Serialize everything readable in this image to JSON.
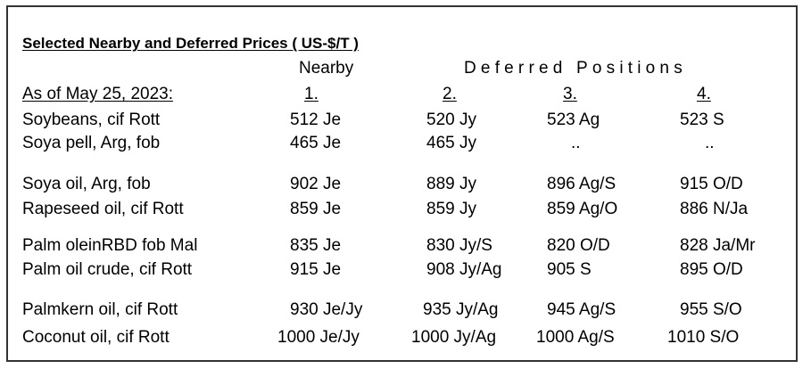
{
  "title": "Selected Nearby and Deferred Prices  ( US-$/T )",
  "header": {
    "nearby": "Nearby",
    "deferred": "Deferred Positions",
    "as_of": "As of May 25, 2023:",
    "columns": [
      "1.",
      "2.",
      "3.",
      "4."
    ]
  },
  "rows": [
    {
      "label": "Soybeans, cif Rott",
      "values": [
        "512 Je",
        "520 Jy",
        "523 Ag",
        "523 S"
      ]
    },
    {
      "label": "Soya pell, Arg, fob",
      "values": [
        "465 Je",
        "465 Jy",
        "..",
        ".."
      ]
    },
    {
      "label": "Soya oil, Arg, fob",
      "values": [
        "902 Je",
        "889 Jy",
        "896 Ag/S",
        "915 O/D"
      ]
    },
    {
      "label": "Rapeseed oil, cif Rott",
      "values": [
        "859 Je",
        "859 Jy",
        "859 Ag/O",
        "886 N/Ja"
      ]
    },
    {
      "label": "Palm oleinRBD fob Mal",
      "values": [
        "835 Je",
        "830 Jy/S",
        "820 O/D",
        "828 Ja/Mr"
      ]
    },
    {
      "label": "Palm oil crude, cif Rott",
      "values": [
        "915 Je",
        "908 Jy/Ag",
        "905 S",
        "895 O/D"
      ]
    },
    {
      "label": "Palmkern oil, cif Rott",
      "values": [
        "930 Je/Jy",
        "935 Jy/Ag",
        "945 Ag/S",
        "955 S/O"
      ]
    },
    {
      "label": "Coconut oil, cif Rott",
      "values": [
        "1000 Je/Jy",
        "1000 Jy/Ag",
        "1000 Ag/S",
        "1010 S/O"
      ]
    }
  ]
}
